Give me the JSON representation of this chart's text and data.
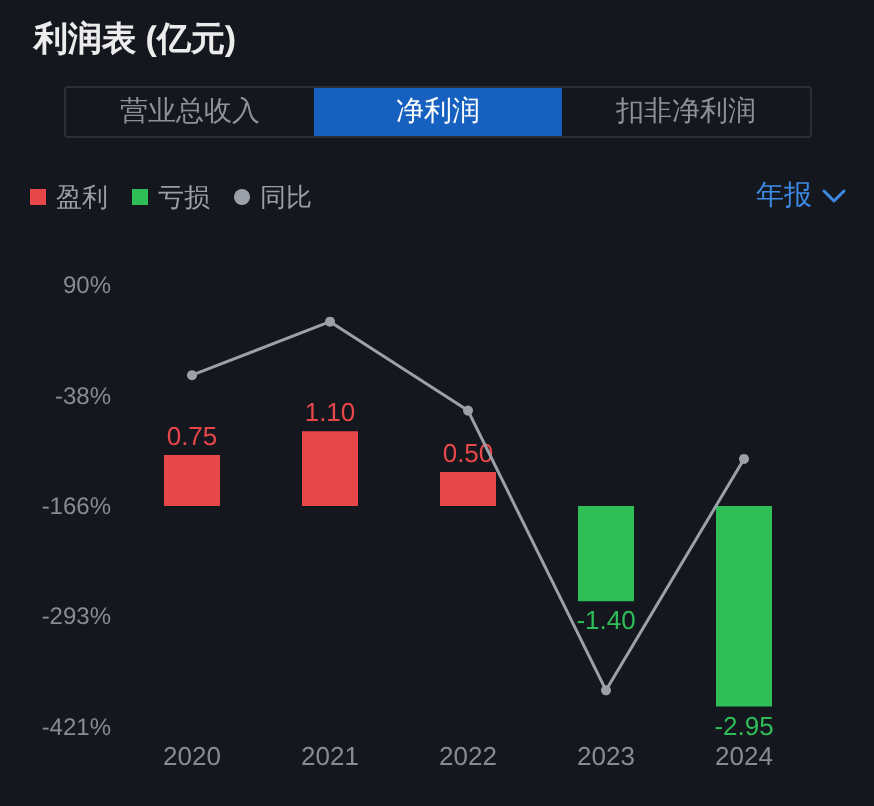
{
  "chart_data": {
    "type": "bar",
    "title": "利润表 (亿元)",
    "annotations": [
      "营业总收入",
      "净利润",
      "扣非净利润",
      "年报"
    ],
    "categories": [
      "2020",
      "2021",
      "2022",
      "2023",
      "2024"
    ],
    "series": [
      {
        "name": "盈利",
        "axis": "y2",
        "color": "#e84749",
        "values": [
          0.75,
          1.1,
          0.5,
          null,
          null
        ],
        "value_labels": [
          "0.75",
          "1.10",
          "0.50",
          null,
          null
        ]
      },
      {
        "name": "亏损",
        "axis": "y2",
        "color": "#2fbd58",
        "values": [
          null,
          null,
          null,
          -1.4,
          -2.95
        ],
        "value_labels": [
          null,
          null,
          null,
          "-1.40",
          "-2.95"
        ]
      },
      {
        "name": "同比",
        "type": "line",
        "color": "#9ca0a8",
        "values": [
          -14,
          48,
          -55,
          -379,
          -111
        ]
      }
    ],
    "ylim": [
      -421,
      90
    ],
    "yticks": [
      {
        "value": 90,
        "label": "90%"
      },
      {
        "value": -38,
        "label": "-38%"
      },
      {
        "value": -166,
        "label": "-166%"
      },
      {
        "value": -293,
        "label": "-293%"
      },
      {
        "value": -421,
        "label": "-421%"
      }
    ],
    "legend": "top left",
    "marker": "circle"
  }
}
